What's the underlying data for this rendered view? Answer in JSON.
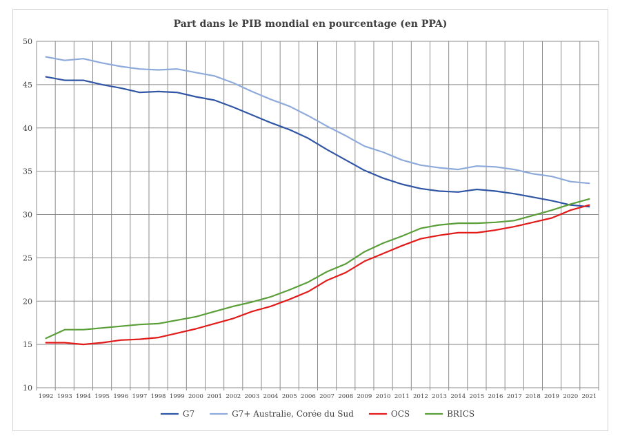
{
  "chart_data": {
    "type": "line",
    "title": "Part dans le PIB mondial en pourcentage (en PPA)",
    "xlabel": "",
    "ylabel": "",
    "ylim": [
      10,
      50
    ],
    "yticks": [
      10,
      15,
      20,
      25,
      30,
      35,
      40,
      45,
      50
    ],
    "grid": true,
    "legend_position": "bottom",
    "categories": [
      "1992",
      "1993",
      "1994",
      "1995",
      "1996",
      "1997",
      "1998",
      "1999",
      "2000",
      "2001",
      "2002",
      "2003",
      "2004",
      "2005",
      "2006",
      "2007",
      "2008",
      "2009",
      "2010",
      "2011",
      "2012",
      "2013",
      "2014",
      "2015",
      "2016",
      "2017",
      "2018",
      "2019",
      "2020",
      "2021"
    ],
    "series": [
      {
        "name": "G7",
        "color": "#2f55a4",
        "values": [
          45.9,
          45.5,
          45.5,
          45.0,
          44.6,
          44.1,
          44.2,
          44.1,
          43.6,
          43.2,
          42.4,
          41.5,
          40.6,
          39.8,
          38.8,
          37.5,
          36.3,
          35.1,
          34.2,
          33.5,
          33.0,
          32.7,
          32.6,
          32.9,
          32.7,
          32.4,
          32.0,
          31.6,
          31.1,
          30.9
        ]
      },
      {
        "name": "G7+ Australie, Corée du Sud",
        "color": "#8eaadb",
        "values": [
          48.2,
          47.8,
          48.0,
          47.5,
          47.1,
          46.8,
          46.7,
          46.8,
          46.4,
          46.0,
          45.2,
          44.2,
          43.3,
          42.5,
          41.4,
          40.2,
          39.1,
          37.9,
          37.2,
          36.3,
          35.7,
          35.4,
          35.2,
          35.6,
          35.5,
          35.2,
          34.7,
          34.4,
          33.8,
          33.6
        ]
      },
      {
        "name": "OCS",
        "color": "#e21a1a",
        "values": [
          15.2,
          15.2,
          15.0,
          15.2,
          15.5,
          15.6,
          15.8,
          16.3,
          16.8,
          17.4,
          18.0,
          18.8,
          19.4,
          20.2,
          21.1,
          22.4,
          23.3,
          24.6,
          25.5,
          26.4,
          27.2,
          27.6,
          27.9,
          27.9,
          28.2,
          28.6,
          29.1,
          29.6,
          30.5,
          31.1
        ]
      },
      {
        "name": "BRICS",
        "color": "#5a9e38",
        "values": [
          15.7,
          16.7,
          16.7,
          16.9,
          17.1,
          17.3,
          17.4,
          17.8,
          18.2,
          18.8,
          19.4,
          19.9,
          20.5,
          21.3,
          22.2,
          23.4,
          24.3,
          25.7,
          26.7,
          27.5,
          28.4,
          28.8,
          29.0,
          29.0,
          29.1,
          29.3,
          29.9,
          30.5,
          31.2,
          31.8
        ]
      }
    ]
  }
}
